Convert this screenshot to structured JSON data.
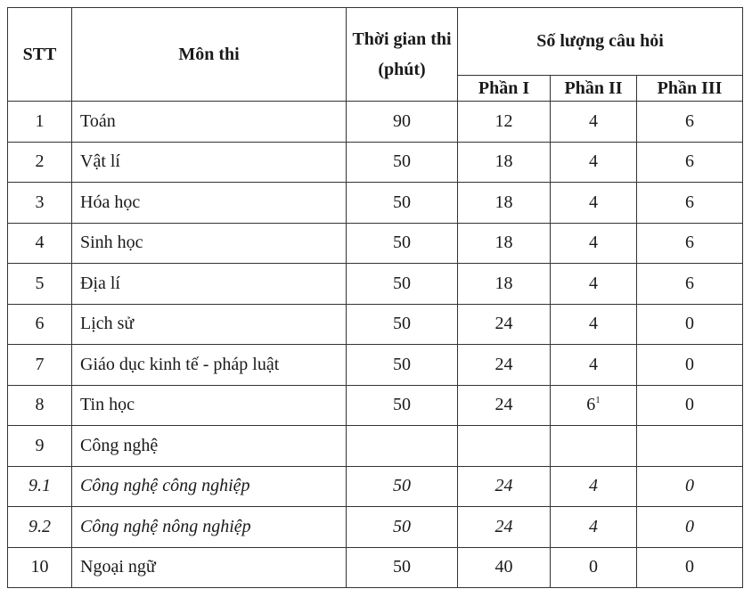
{
  "header": {
    "stt": "STT",
    "subject": "Môn thi",
    "duration": "Thời gian thi (phút)",
    "question_count": "Số lượng câu hỏi",
    "part1": "Phần I",
    "part2": "Phần II",
    "part3": "Phần III"
  },
  "rows": [
    {
      "stt": "1",
      "subject": "Toán",
      "duration": "90",
      "p1": "12",
      "p2": "4",
      "p2_note": "",
      "p3": "6",
      "italic": false
    },
    {
      "stt": "2",
      "subject": "Vật lí",
      "duration": "50",
      "p1": "18",
      "p2": "4",
      "p2_note": "",
      "p3": "6",
      "italic": false
    },
    {
      "stt": "3",
      "subject": "Hóa học",
      "duration": "50",
      "p1": "18",
      "p2": "4",
      "p2_note": "",
      "p3": "6",
      "italic": false
    },
    {
      "stt": "4",
      "subject": "Sinh học",
      "duration": "50",
      "p1": "18",
      "p2": "4",
      "p2_note": "",
      "p3": "6",
      "italic": false
    },
    {
      "stt": "5",
      "subject": "Địa lí",
      "duration": "50",
      "p1": "18",
      "p2": "4",
      "p2_note": "",
      "p3": "6",
      "italic": false
    },
    {
      "stt": "6",
      "subject": "Lịch sử",
      "duration": "50",
      "p1": "24",
      "p2": "4",
      "p2_note": "",
      "p3": "0",
      "italic": false
    },
    {
      "stt": "7",
      "subject": "Giáo dục kinh tế - pháp luật",
      "duration": "50",
      "p1": "24",
      "p2": "4",
      "p2_note": "",
      "p3": "0",
      "italic": false
    },
    {
      "stt": "8",
      "subject": "Tin học",
      "duration": "50",
      "p1": "24",
      "p2": "6",
      "p2_note": "1",
      "p3": "0",
      "italic": false
    },
    {
      "stt": "9",
      "subject": "Công nghệ",
      "duration": "",
      "p1": "",
      "p2": "",
      "p2_note": "",
      "p3": "",
      "italic": false
    },
    {
      "stt": "9.1",
      "subject": "Công nghệ công nghiệp",
      "duration": "50",
      "p1": "24",
      "p2": "4",
      "p2_note": "",
      "p3": "0",
      "italic": true
    },
    {
      "stt": "9.2",
      "subject": "Công nghệ nông nghiệp",
      "duration": "50",
      "p1": "24",
      "p2": "4",
      "p2_note": "",
      "p3": "0",
      "italic": true
    },
    {
      "stt": "10",
      "subject": "Ngoại ngữ",
      "duration": "50",
      "p1": "40",
      "p2": "0",
      "p2_note": "",
      "p3": "0",
      "italic": false
    }
  ]
}
